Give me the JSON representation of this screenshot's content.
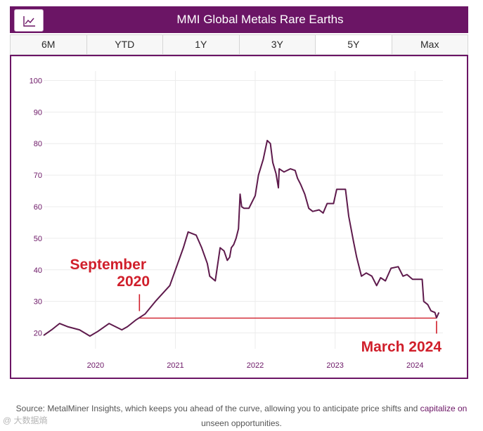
{
  "header": {
    "title": "MMI Global Metals Rare Earths",
    "icon": "line-chart-icon"
  },
  "tabs": [
    {
      "label": "6M",
      "active": false
    },
    {
      "label": "YTD",
      "active": false
    },
    {
      "label": "1Y",
      "active": false
    },
    {
      "label": "3Y",
      "active": false
    },
    {
      "label": "5Y",
      "active": true
    },
    {
      "label": "Max",
      "active": false
    }
  ],
  "colors": {
    "brand": "#6b1565",
    "line": "#5e1a4c",
    "annotation": "#d01f2b"
  },
  "chart_data": {
    "type": "line",
    "title": "MMI Global Metals Rare Earths",
    "xlabel": "",
    "ylabel": "",
    "xlim": [
      2019.35,
      2024.35
    ],
    "ylim": [
      15,
      103
    ],
    "y_ticks": [
      "20",
      "30",
      "40",
      "50",
      "60",
      "70",
      "80",
      "90",
      "100"
    ],
    "x_ticks": [
      {
        "value": 2020,
        "label": "2020"
      },
      {
        "value": 2021,
        "label": "2021"
      },
      {
        "value": 2022,
        "label": "2022"
      },
      {
        "value": 2023,
        "label": "2023"
      },
      {
        "value": 2024,
        "label": "2024"
      }
    ],
    "grid": true,
    "series": [
      {
        "name": "MMI Global Metals Rare Earths",
        "points": [
          [
            2019.35,
            19.2
          ],
          [
            2019.45,
            21
          ],
          [
            2019.55,
            23
          ],
          [
            2019.65,
            22
          ],
          [
            2019.8,
            21
          ],
          [
            2019.93,
            19
          ],
          [
            2020.03,
            20.5
          ],
          [
            2020.17,
            23
          ],
          [
            2020.33,
            21
          ],
          [
            2020.4,
            22
          ],
          [
            2020.5,
            24
          ],
          [
            2020.62,
            26
          ],
          [
            2020.75,
            30
          ],
          [
            2020.93,
            35
          ],
          [
            2021.1,
            47
          ],
          [
            2021.16,
            52
          ],
          [
            2021.26,
            51
          ],
          [
            2021.33,
            47
          ],
          [
            2021.4,
            42
          ],
          [
            2021.43,
            38
          ],
          [
            2021.5,
            36.5
          ],
          [
            2021.56,
            47
          ],
          [
            2021.61,
            46
          ],
          [
            2021.65,
            43
          ],
          [
            2021.68,
            44
          ],
          [
            2021.7,
            47
          ],
          [
            2021.73,
            48
          ],
          [
            2021.76,
            50
          ],
          [
            2021.79,
            53
          ],
          [
            2021.81,
            64
          ],
          [
            2021.83,
            60
          ],
          [
            2021.86,
            59.5
          ],
          [
            2021.92,
            59.5
          ],
          [
            2021.95,
            61
          ],
          [
            2022.0,
            63.5
          ],
          [
            2022.04,
            70
          ],
          [
            2022.1,
            75
          ],
          [
            2022.15,
            81
          ],
          [
            2022.19,
            80
          ],
          [
            2022.22,
            74
          ],
          [
            2022.26,
            70.5
          ],
          [
            2022.29,
            66
          ],
          [
            2022.3,
            72
          ],
          [
            2022.36,
            71
          ],
          [
            2022.44,
            72
          ],
          [
            2022.5,
            71.5
          ],
          [
            2022.53,
            69
          ],
          [
            2022.57,
            67
          ],
          [
            2022.62,
            64
          ],
          [
            2022.67,
            59.5
          ],
          [
            2022.72,
            58.5
          ],
          [
            2022.8,
            59
          ],
          [
            2022.85,
            58
          ],
          [
            2022.9,
            61
          ],
          [
            2022.98,
            61
          ],
          [
            2023.02,
            65.5
          ],
          [
            2023.13,
            65.5
          ],
          [
            2023.17,
            57
          ],
          [
            2023.23,
            49
          ],
          [
            2023.27,
            44
          ],
          [
            2023.33,
            38
          ],
          [
            2023.39,
            39
          ],
          [
            2023.46,
            38
          ],
          [
            2023.52,
            35
          ],
          [
            2023.57,
            37.5
          ],
          [
            2023.63,
            36.5
          ],
          [
            2023.7,
            40.5
          ],
          [
            2023.79,
            41
          ],
          [
            2023.85,
            38
          ],
          [
            2023.9,
            38.5
          ],
          [
            2023.97,
            37
          ],
          [
            2024.09,
            37
          ],
          [
            2024.11,
            30
          ],
          [
            2024.16,
            29
          ],
          [
            2024.2,
            27
          ],
          [
            2024.25,
            26.5
          ],
          [
            2024.27,
            24.8
          ],
          [
            2024.3,
            26.5
          ]
        ]
      }
    ],
    "annotations": [
      {
        "id": "start",
        "line1": "September",
        "line2": "2020",
        "x": 2020.55,
        "y": 24.7
      },
      {
        "id": "end",
        "line1": "March 2024",
        "x": 2024.27,
        "y": 24.7
      }
    ]
  },
  "caption": {
    "text_pre": "Source: MetalMiner Insights, which keeps you ahead of the curve, allowing you to anticipate price shifts and ",
    "link": "capitalize on",
    "text_post": "unseen opportunities.",
    "watermark": "@ 大数据熵"
  }
}
